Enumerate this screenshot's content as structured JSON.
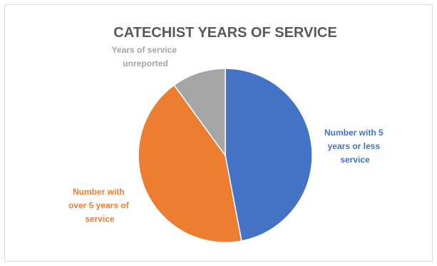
{
  "chart_data": {
    "type": "pie",
    "title": "CATECHIST YEARS OF SERVICE",
    "start_angle_deg": 0,
    "direction": "clockwise",
    "legend": "none (data labels beside slices)",
    "slices": [
      {
        "label_lines": [
          "Number with 5",
          "years or less",
          "service"
        ],
        "value": 47,
        "color": "#4472c4"
      },
      {
        "label_lines": [
          "Number with",
          "over 5 years of",
          "service"
        ],
        "value": 43,
        "color": "#ed7d31"
      },
      {
        "label_lines": [
          "Years of service",
          "unreported"
        ],
        "value": 10,
        "color": "#a5a5a5"
      }
    ]
  }
}
